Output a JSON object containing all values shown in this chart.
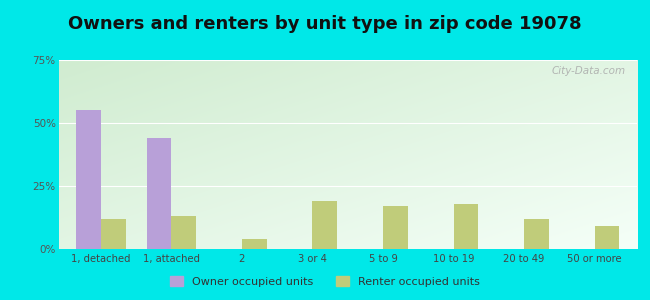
{
  "title": "Owners and renters by unit type in zip code 19078",
  "categories": [
    "1, detached",
    "1, attached",
    "2",
    "3 or 4",
    "5 to 9",
    "10 to 19",
    "20 to 49",
    "50 or more"
  ],
  "owner_values": [
    55,
    44,
    0,
    0,
    0,
    0,
    0,
    0
  ],
  "renter_values": [
    12,
    13,
    4,
    19,
    17,
    18,
    12,
    9
  ],
  "owner_color": "#b8a0d8",
  "renter_color": "#c0cc7a",
  "outer_bg": "#00e8e8",
  "grad_color_topleft": "#d0ecd0",
  "grad_color_bottomright": "#f5fff8",
  "ylim": [
    0,
    75
  ],
  "yticks": [
    0,
    25,
    50,
    75
  ],
  "ytick_labels": [
    "0%",
    "25%",
    "50%",
    "75%"
  ],
  "title_fontsize": 13,
  "legend_owner_label": "Owner occupied units",
  "legend_renter_label": "Renter occupied units",
  "bar_width": 0.35,
  "watermark": "City-Data.com"
}
